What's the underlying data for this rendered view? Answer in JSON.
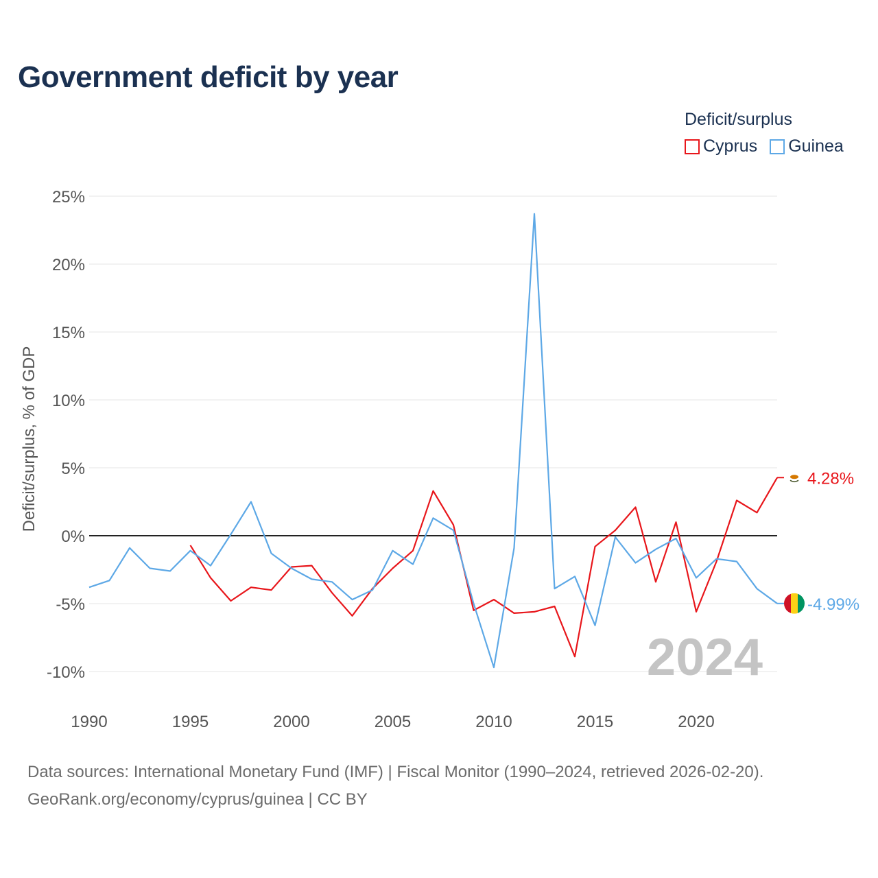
{
  "title": "Government deficit by year",
  "legend": {
    "title": "Deficit/surplus",
    "items": [
      {
        "name": "Cyprus",
        "color": "#e8161b"
      },
      {
        "name": "Guinea",
        "color": "#5da8e6"
      }
    ]
  },
  "year_watermark": "2024",
  "sources": {
    "line1": "Data sources: International Monetary Fund (IMF) | Fiscal Monitor (1990–2024, retrieved 2026-02-20).",
    "line2": "GeoRank.org/economy/cyprus/guinea | CC BY"
  },
  "chart_data": {
    "type": "line",
    "title": "Government deficit by year",
    "xlabel": "",
    "ylabel": "Deficit/surplus, % of GDP",
    "xlim": [
      1990,
      2024
    ],
    "ylim": [
      -10,
      25
    ],
    "x_ticks": [
      1990,
      1995,
      2000,
      2005,
      2010,
      2015,
      2020
    ],
    "x_tick_labels": [
      "1990",
      "1995",
      "2000",
      "2005",
      "2010",
      "2015",
      "2020"
    ],
    "y_ticks": [
      -10,
      -5,
      0,
      5,
      10,
      15,
      20,
      25
    ],
    "y_tick_labels": [
      "-10%",
      "-5%",
      "0%",
      "5%",
      "10%",
      "15%",
      "20%",
      "25%"
    ],
    "grid": true,
    "legend_position": "top-right",
    "series": [
      {
        "name": "Cyprus",
        "color": "#e8161b",
        "end_label": "4.28%",
        "points": [
          [
            1995,
            -0.7
          ],
          [
            1996,
            -3.1
          ],
          [
            1997,
            -4.8
          ],
          [
            1998,
            -3.8
          ],
          [
            1999,
            -4.0
          ],
          [
            2000,
            -2.3
          ],
          [
            2001,
            -2.2
          ],
          [
            2002,
            -4.2
          ],
          [
            2003,
            -5.9
          ],
          [
            2004,
            -3.9
          ],
          [
            2005,
            -2.4
          ],
          [
            2006,
            -1.1
          ],
          [
            2007,
            3.3
          ],
          [
            2008,
            0.8
          ],
          [
            2009,
            -5.5
          ],
          [
            2010,
            -4.7
          ],
          [
            2011,
            -5.7
          ],
          [
            2012,
            -5.6
          ],
          [
            2013,
            -5.2
          ],
          [
            2014,
            -8.9
          ],
          [
            2015,
            -0.8
          ],
          [
            2016,
            0.4
          ],
          [
            2017,
            2.1
          ],
          [
            2018,
            -3.4
          ],
          [
            2019,
            1.0
          ],
          [
            2020,
            -5.6
          ],
          [
            2021,
            -1.9
          ],
          [
            2022,
            2.6
          ],
          [
            2023,
            1.7
          ],
          [
            2024,
            4.28
          ]
        ]
      },
      {
        "name": "Guinea",
        "color": "#5da8e6",
        "end_label": "-4.99%",
        "points": [
          [
            1990,
            -3.8
          ],
          [
            1991,
            -3.3
          ],
          [
            1992,
            -0.9
          ],
          [
            1993,
            -2.4
          ],
          [
            1994,
            -2.6
          ],
          [
            1995,
            -1.1
          ],
          [
            1996,
            -2.2
          ],
          [
            1997,
            0.1
          ],
          [
            1998,
            2.5
          ],
          [
            1999,
            -1.3
          ],
          [
            2000,
            -2.4
          ],
          [
            2001,
            -3.2
          ],
          [
            2002,
            -3.4
          ],
          [
            2003,
            -4.7
          ],
          [
            2004,
            -4.0
          ],
          [
            2005,
            -1.1
          ],
          [
            2006,
            -2.1
          ],
          [
            2007,
            1.3
          ],
          [
            2008,
            0.4
          ],
          [
            2009,
            -5.0
          ],
          [
            2010,
            -9.7
          ],
          [
            2011,
            -0.9
          ],
          [
            2012,
            23.7
          ],
          [
            2013,
            -3.9
          ],
          [
            2014,
            -3.0
          ],
          [
            2015,
            -6.6
          ],
          [
            2016,
            -0.1
          ],
          [
            2017,
            -2.0
          ],
          [
            2018,
            -1.0
          ],
          [
            2019,
            -0.2
          ],
          [
            2020,
            -3.1
          ],
          [
            2021,
            -1.7
          ],
          [
            2022,
            -1.9
          ],
          [
            2023,
            -3.9
          ],
          [
            2024,
            -4.99
          ]
        ]
      }
    ]
  }
}
